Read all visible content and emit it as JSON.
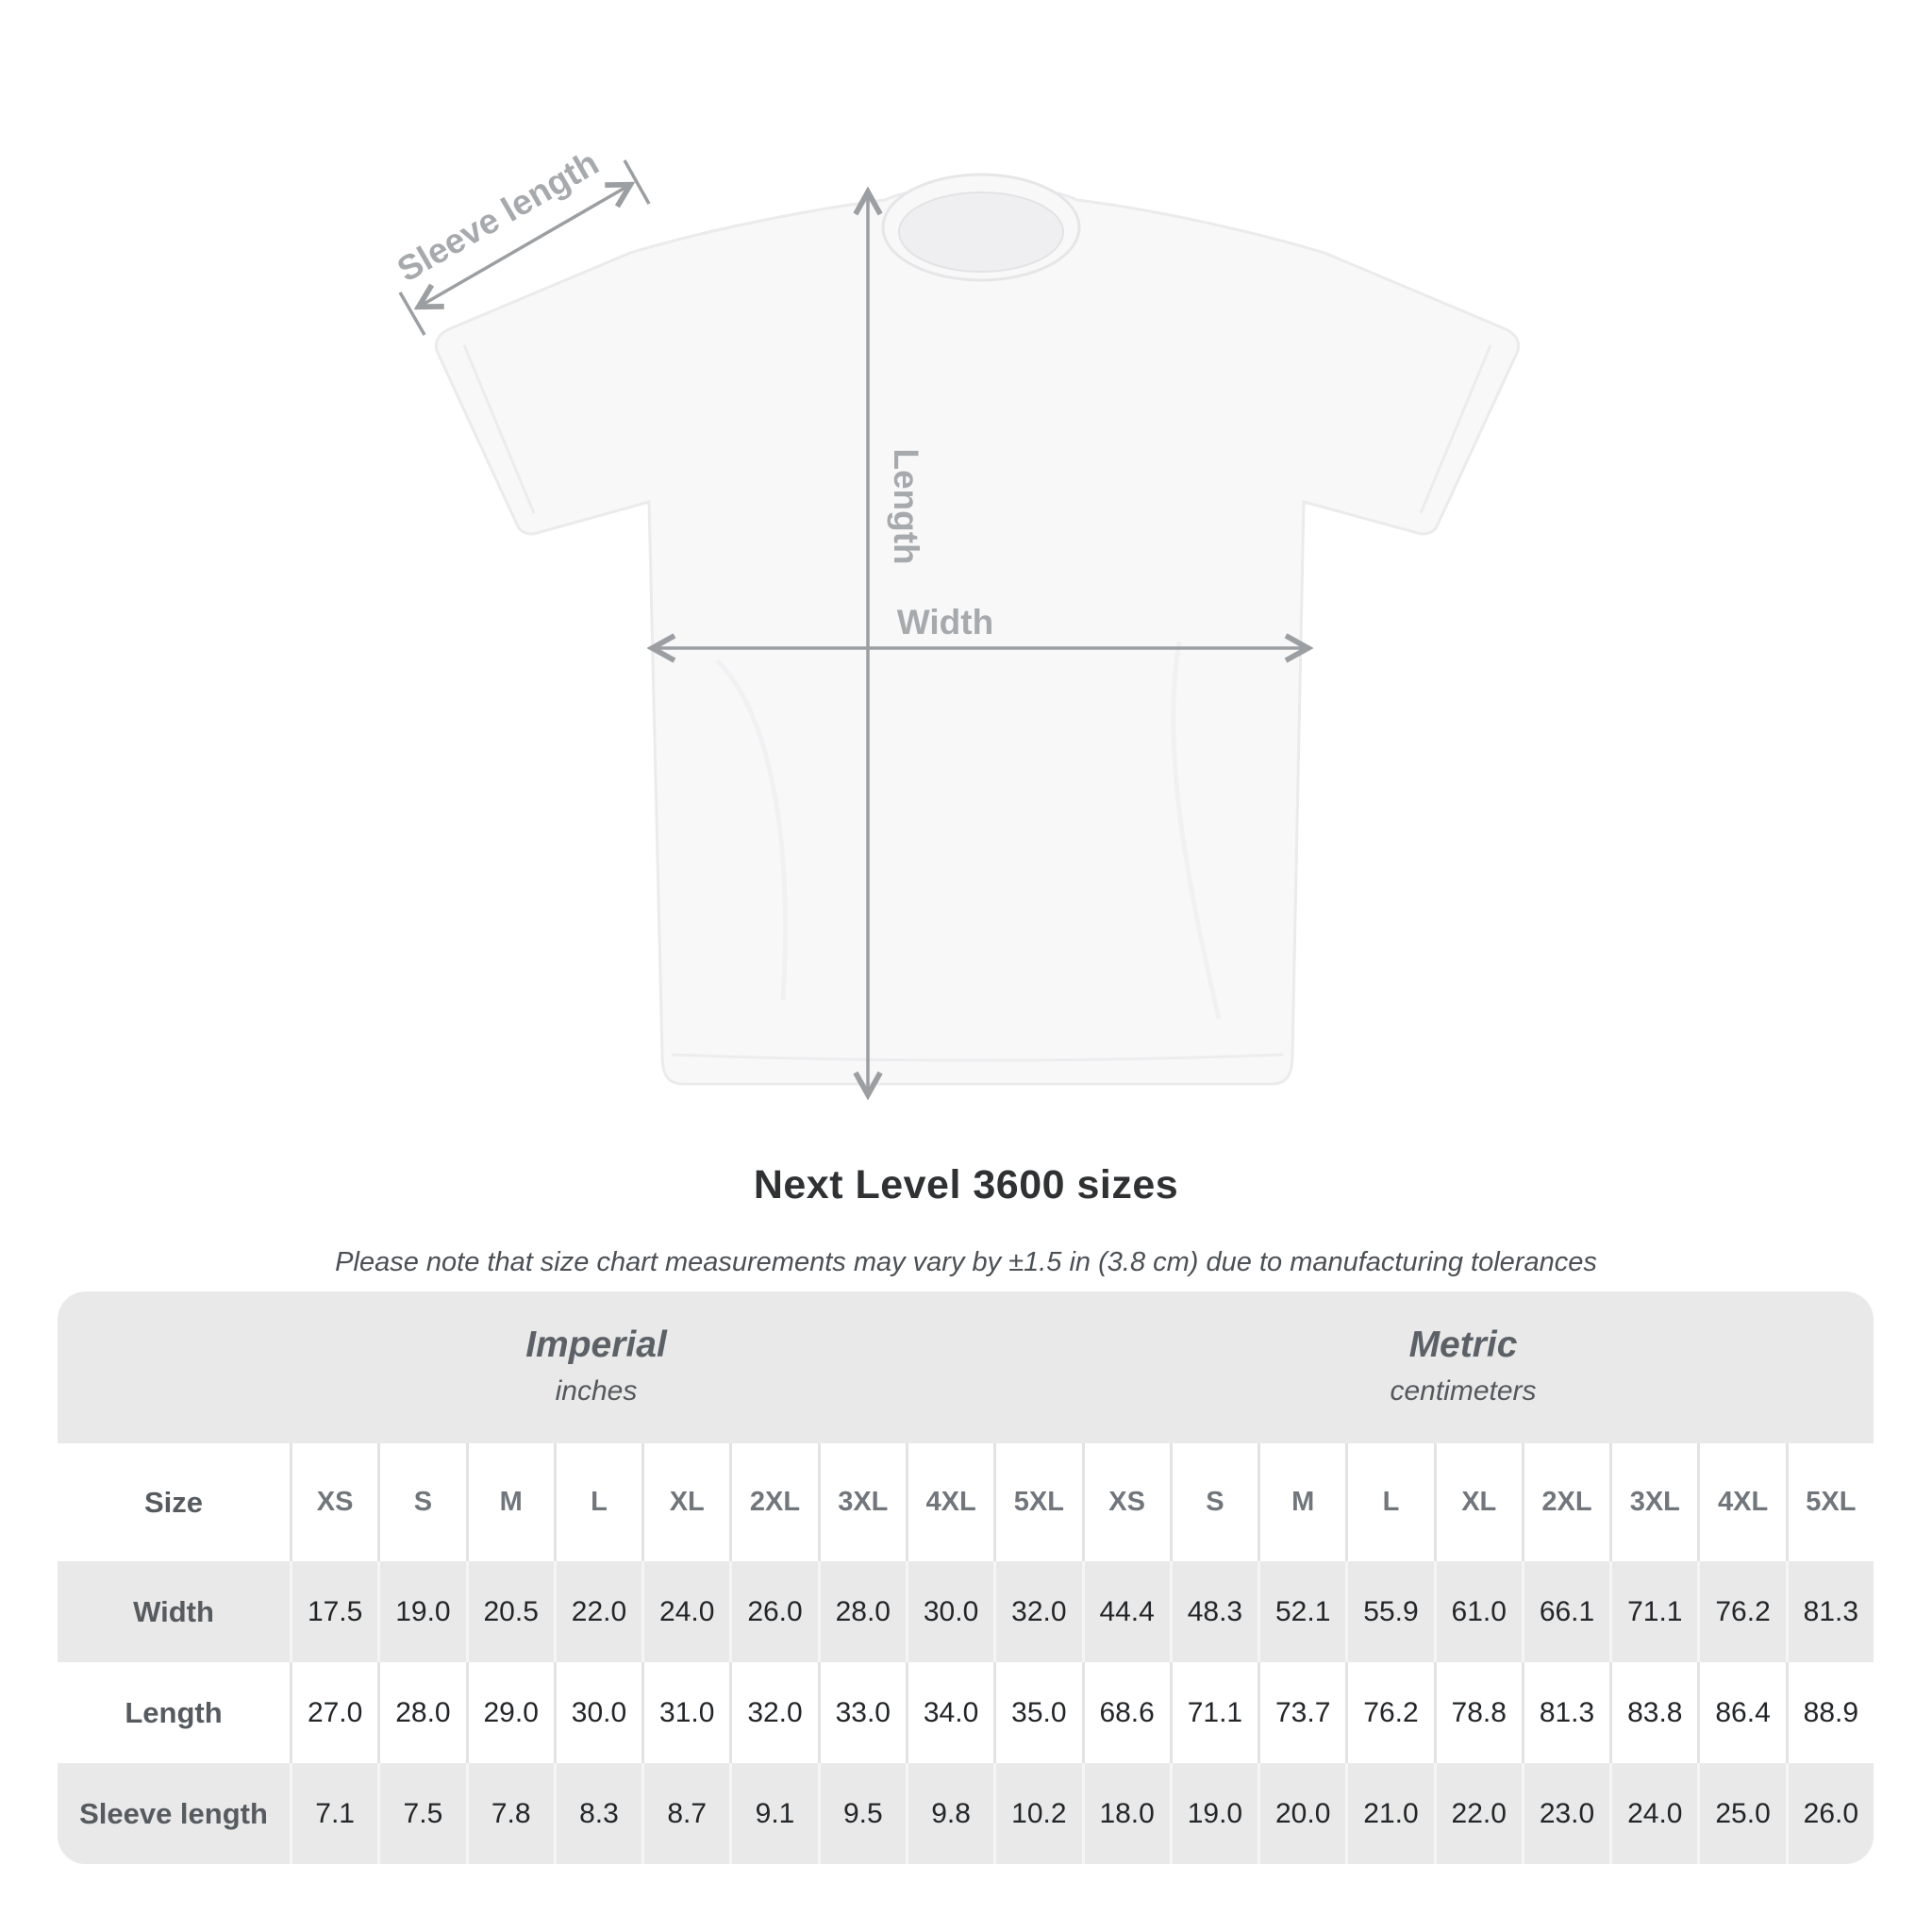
{
  "diagram": {
    "labels": {
      "sleeve_length": "Sleeve length",
      "length": "Length",
      "width": "Width"
    }
  },
  "heading": {
    "title": "Next Level 3600 sizes",
    "subtitle": "Please note that size chart measurements may vary by ±1.5 in (3.8 cm) due to manufacturing tolerances"
  },
  "table": {
    "groups": [
      {
        "name": "Imperial",
        "unit": "inches"
      },
      {
        "name": "Metric",
        "unit": "centimeters"
      }
    ],
    "size_label": "Size",
    "sizes": [
      "XS",
      "S",
      "M",
      "L",
      "XL",
      "2XL",
      "3XL",
      "4XL",
      "5XL"
    ],
    "rows": [
      {
        "label": "Width",
        "imperial": [
          "17.5",
          "19.0",
          "20.5",
          "22.0",
          "24.0",
          "26.0",
          "28.0",
          "30.0",
          "32.0"
        ],
        "metric": [
          "44.4",
          "48.3",
          "52.1",
          "55.9",
          "61.0",
          "66.1",
          "71.1",
          "76.2",
          "81.3"
        ]
      },
      {
        "label": "Length",
        "imperial": [
          "27.0",
          "28.0",
          "29.0",
          "30.0",
          "31.0",
          "32.0",
          "33.0",
          "34.0",
          "35.0"
        ],
        "metric": [
          "68.6",
          "71.1",
          "73.7",
          "76.2",
          "78.8",
          "81.3",
          "83.8",
          "86.4",
          "88.9"
        ]
      },
      {
        "label": "Sleeve length",
        "imperial": [
          "7.1",
          "7.5",
          "7.8",
          "8.3",
          "8.7",
          "9.1",
          "9.5",
          "9.8",
          "10.2"
        ],
        "metric": [
          "18.0",
          "19.0",
          "20.0",
          "21.0",
          "22.0",
          "23.0",
          "24.0",
          "25.0",
          "26.0"
        ]
      }
    ]
  },
  "chart_data": {
    "type": "table",
    "title": "Next Level 3600 sizes",
    "sizes": [
      "XS",
      "S",
      "M",
      "L",
      "XL",
      "2XL",
      "3XL",
      "4XL",
      "5XL"
    ],
    "measurements_inches": {
      "Width": [
        17.5,
        19.0,
        20.5,
        22.0,
        24.0,
        26.0,
        28.0,
        30.0,
        32.0
      ],
      "Length": [
        27.0,
        28.0,
        29.0,
        30.0,
        31.0,
        32.0,
        33.0,
        34.0,
        35.0
      ],
      "Sleeve length": [
        7.1,
        7.5,
        7.8,
        8.3,
        8.7,
        9.1,
        9.5,
        9.8,
        10.2
      ]
    },
    "measurements_cm": {
      "Width": [
        44.4,
        48.3,
        52.1,
        55.9,
        61.0,
        66.1,
        71.1,
        76.2,
        81.3
      ],
      "Length": [
        68.6,
        71.1,
        73.7,
        76.2,
        78.8,
        81.3,
        83.8,
        86.4,
        88.9
      ],
      "Sleeve length": [
        18.0,
        19.0,
        20.0,
        21.0,
        22.0,
        23.0,
        24.0,
        25.0,
        26.0
      ]
    }
  },
  "colors": {
    "dimension_lines": "#9c9fa2",
    "dimension_labels": "#a6aaad",
    "table_background": "#e9e9e9",
    "row_alt_background": "#ffffff",
    "title_text": "#2f3133",
    "shirt_fill": "#f8f8f9"
  }
}
